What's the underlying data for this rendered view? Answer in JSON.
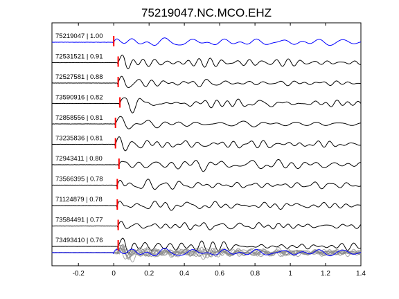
{
  "chart_data": {
    "type": "line",
    "title": "75219047.NC.MCO.EHZ",
    "xlabel": "",
    "ylabel": "",
    "xlim": [
      -0.35,
      1.4
    ],
    "x_ticks": [
      -0.2,
      0,
      0.2,
      0.4,
      0.6,
      0.8,
      1,
      1.2,
      1.4
    ],
    "x_tick_labels": [
      "-0.2",
      "0",
      "0.2",
      "0.4",
      "0.6",
      "0.8",
      "1",
      "1.2",
      "1.4"
    ],
    "grid": false,
    "pick_time": 0,
    "series": [
      {
        "name": "75219047 | 1.00",
        "pick": 0.0,
        "role": "master"
      },
      {
        "name": "72531521 | 0.91",
        "pick": 0.025
      },
      {
        "name": "72527581 | 0.88",
        "pick": 0.025
      },
      {
        "name": "73590916 | 0.82",
        "pick": 0.035
      },
      {
        "name": "72858556 | 0.81",
        "pick": 0.01
      },
      {
        "name": "73235836 | 0.81",
        "pick": 0.01
      },
      {
        "name": "72943411 | 0.80",
        "pick": 0.03
      },
      {
        "name": "73566395 | 0.78",
        "pick": 0.02
      },
      {
        "name": "71124879 | 0.78",
        "pick": 0.02
      },
      {
        "name": "73584491 | 0.77",
        "pick": 0.025
      },
      {
        "name": "73493410 | 0.76",
        "pick": 0.025
      }
    ],
    "stack": {
      "role": "overlay"
    },
    "colors": {
      "master": "#0000ff",
      "trace": "#000000",
      "pick": "#ff0000",
      "overlay": "#888888"
    }
  }
}
